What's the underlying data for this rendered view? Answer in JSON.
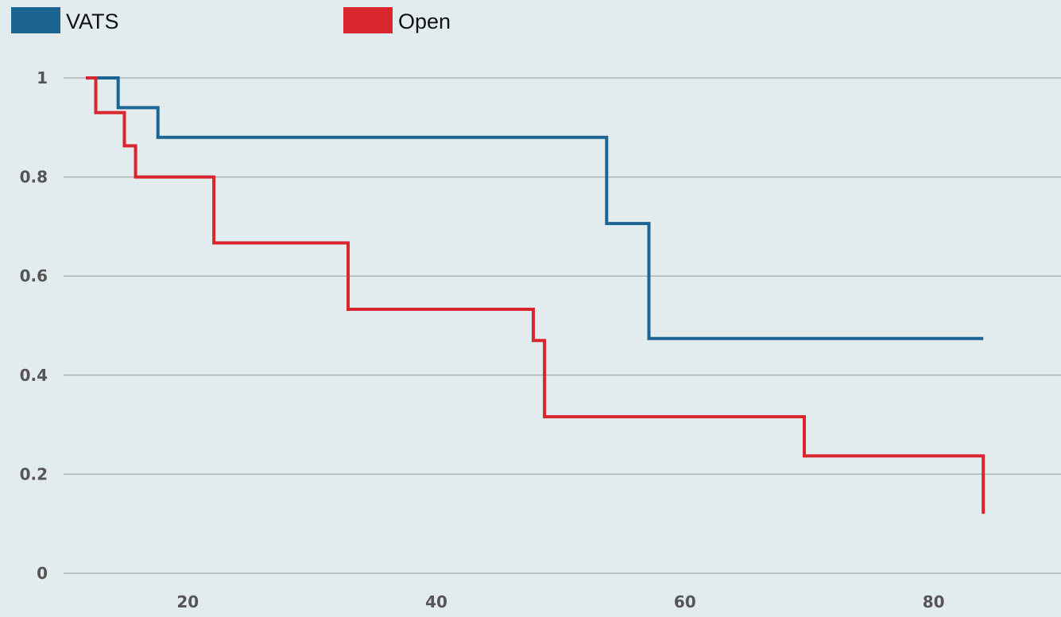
{
  "chart_data": {
    "type": "line",
    "step": true,
    "legend_position": "top-left",
    "grid": "horizontal",
    "xlim": [
      10,
      90
    ],
    "ylim": [
      0,
      1
    ],
    "xticks": [
      20,
      40,
      60,
      80
    ],
    "yticks": [
      0,
      0.2,
      0.4,
      0.6,
      0.8,
      1
    ],
    "ytick_labels": [
      "0",
      "0.2",
      "0.4",
      "0.6",
      "0.8",
      "1"
    ],
    "xtick_labels": [
      "20",
      "40",
      "60",
      "80"
    ],
    "series": [
      {
        "name": "VATS",
        "color": "#1c6592",
        "x": [
          11.8,
          14.4,
          17.6,
          53.7,
          57.1,
          84.0
        ],
        "y": [
          1.0,
          0.94,
          0.88,
          0.706,
          0.474,
          0.474
        ]
      },
      {
        "name": "Open",
        "color": "#d9252e",
        "x": [
          11.8,
          12.6,
          14.9,
          15.8,
          22.1,
          32.9,
          47.8,
          48.7,
          69.6,
          84.0
        ],
        "y": [
          1.0,
          0.93,
          0.863,
          0.8,
          0.667,
          0.533,
          0.47,
          0.316,
          0.237,
          0.12
        ]
      }
    ]
  }
}
